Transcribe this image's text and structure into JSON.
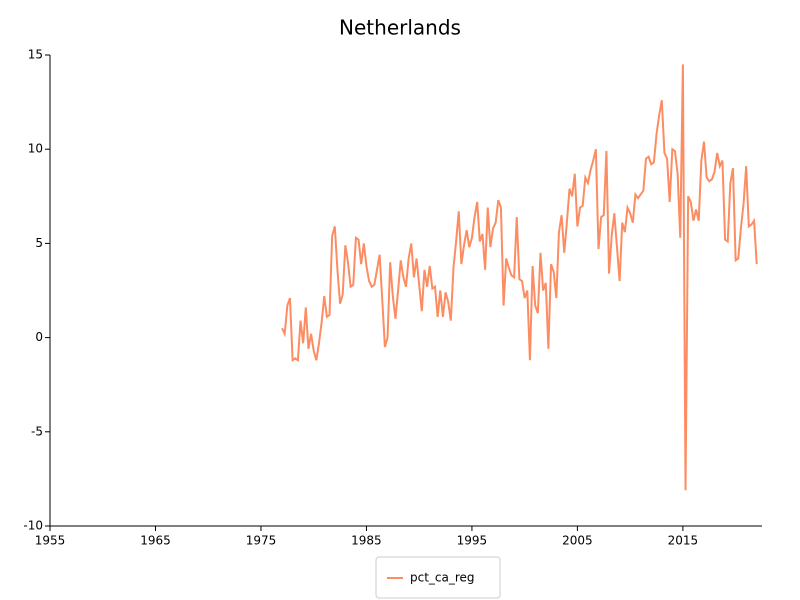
{
  "chart_data": {
    "type": "line",
    "title": "Netherlands",
    "x": [
      1977,
      1977.25,
      1977.5,
      1977.75,
      1978,
      1978.25,
      1978.5,
      1978.75,
      1979,
      1979.25,
      1979.5,
      1979.75,
      1980,
      1980.25,
      1980.5,
      1980.75,
      1981,
      1981.25,
      1981.5,
      1981.75,
      1982,
      1982.25,
      1982.5,
      1982.75,
      1983,
      1983.25,
      1983.5,
      1983.75,
      1984,
      1984.25,
      1984.5,
      1984.75,
      1985,
      1985.25,
      1985.5,
      1985.75,
      1986,
      1986.25,
      1986.5,
      1986.75,
      1987,
      1987.25,
      1987.5,
      1987.75,
      1988,
      1988.25,
      1988.5,
      1988.75,
      1989,
      1989.25,
      1989.5,
      1989.75,
      1990,
      1990.25,
      1990.5,
      1990.75,
      1991,
      1991.25,
      1991.5,
      1991.75,
      1992,
      1992.25,
      1992.5,
      1992.75,
      1993,
      1993.25,
      1993.5,
      1993.75,
      1994,
      1994.25,
      1994.5,
      1994.75,
      1995,
      1995.25,
      1995.5,
      1995.75,
      1996,
      1996.25,
      1996.5,
      1996.75,
      1997,
      1997.25,
      1997.5,
      1997.75,
      1998,
      1998.25,
      1998.5,
      1998.75,
      1999,
      1999.25,
      1999.5,
      1999.75,
      2000,
      2000.25,
      2000.5,
      2000.75,
      2001,
      2001.25,
      2001.5,
      2001.75,
      2002,
      2002.25,
      2002.5,
      2002.75,
      2003,
      2003.25,
      2003.5,
      2003.75,
      2004,
      2004.25,
      2004.5,
      2004.75,
      2005,
      2005.25,
      2005.5,
      2005.75,
      2006,
      2006.25,
      2006.5,
      2006.75,
      2007,
      2007.25,
      2007.5,
      2007.75,
      2008,
      2008.25,
      2008.5,
      2008.75,
      2009,
      2009.25,
      2009.5,
      2009.75,
      2010,
      2010.25,
      2010.5,
      2010.75,
      2011,
      2011.25,
      2011.5,
      2011.75,
      2012,
      2012.25,
      2012.5,
      2012.75,
      2013,
      2013.25,
      2013.5,
      2013.75,
      2014,
      2014.25,
      2014.5,
      2014.75,
      2015,
      2015.25,
      2015.5,
      2015.75,
      2016,
      2016.25,
      2016.5,
      2016.75,
      2017,
      2017.25,
      2017.5,
      2017.75,
      2018,
      2018.25,
      2018.5,
      2018.75,
      2019,
      2019.25,
      2019.5,
      2019.75,
      2020,
      2020.25,
      2020.5,
      2020.75,
      2021,
      2021.25,
      2021.5,
      2021.75,
      2022
    ],
    "series": [
      {
        "name": "pct_ca_reg",
        "color": "#fc8d62",
        "values": [
          0.5,
          0.2,
          1.7,
          2.1,
          -1.2,
          -1.1,
          -1.2,
          0.9,
          -0.3,
          1.6,
          -0.6,
          0.2,
          -0.7,
          -1.2,
          -0.3,
          0.8,
          2.2,
          1.1,
          1.2,
          5.4,
          5.9,
          3.6,
          1.8,
          2.3,
          4.9,
          4.0,
          2.7,
          2.8,
          5.3,
          5.2,
          3.9,
          5.0,
          3.8,
          3.0,
          2.7,
          2.8,
          3.6,
          4.4,
          2.0,
          -0.5,
          0.0,
          4.0,
          2.2,
          1.0,
          2.5,
          4.1,
          3.2,
          2.7,
          4.2,
          5.0,
          3.2,
          4.2,
          2.8,
          1.4,
          3.6,
          2.7,
          3.8,
          2.6,
          2.7,
          1.1,
          2.5,
          1.1,
          2.4,
          1.9,
          0.9,
          3.7,
          5.1,
          6.7,
          3.9,
          4.9,
          5.7,
          4.8,
          5.3,
          6.4,
          7.2,
          5.1,
          5.5,
          3.6,
          6.9,
          4.8,
          5.8,
          6.1,
          7.3,
          6.9,
          1.7,
          4.2,
          3.7,
          3.3,
          3.2,
          6.4,
          3.1,
          3.0,
          2.1,
          2.5,
          -1.2,
          3.8,
          1.7,
          1.3,
          4.5,
          2.5,
          2.9,
          -0.6,
          3.9,
          3.5,
          2.1,
          5.6,
          6.5,
          4.5,
          6.1,
          7.9,
          7.5,
          8.7,
          5.9,
          6.9,
          7.0,
          8.5,
          8.2,
          8.9,
          9.4,
          10.0,
          4.7,
          6.4,
          6.5,
          9.9,
          3.4,
          5.4,
          6.6,
          4.8,
          3.0,
          6.1,
          5.6,
          6.9,
          6.6,
          6.1,
          7.6,
          7.4,
          7.6,
          7.8,
          9.5,
          9.6,
          9.2,
          9.3,
          10.8,
          11.8,
          12.6,
          9.8,
          9.5,
          7.2,
          10.0,
          9.9,
          8.7,
          5.3,
          14.5,
          -8.1,
          7.5,
          7.2,
          6.2,
          6.8,
          6.2,
          9.4,
          10.4,
          8.5,
          8.3,
          8.4,
          8.8,
          9.8,
          9.1,
          9.4,
          5.2,
          5.1,
          8.2,
          9.0,
          4.1,
          4.2,
          5.8,
          7.1,
          9.1,
          5.9,
          6.0,
          6.2,
          3.9
        ]
      }
    ],
    "xlim": [
      1955,
      2022.5
    ],
    "xticks": [
      1955,
      1965,
      1975,
      1985,
      1995,
      2005,
      2015
    ],
    "ylim": [
      -10,
      15
    ],
    "yticks": [
      -10,
      -5,
      0,
      5,
      10,
      15
    ],
    "grid": false
  }
}
